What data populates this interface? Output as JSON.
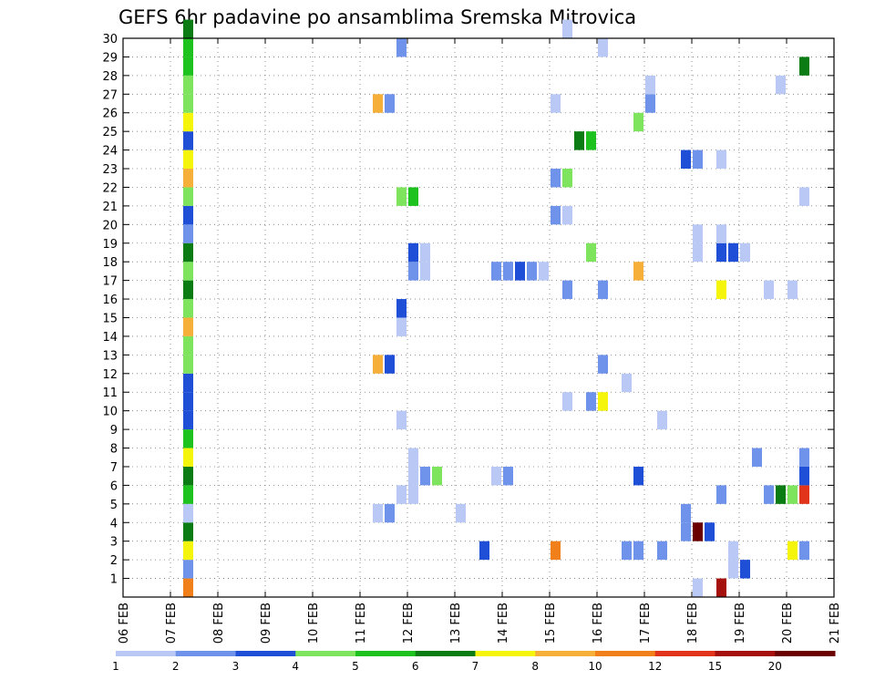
{
  "chart_data": {
    "type": "heatmap",
    "title": "GEFS 6hr padavine po ansamblima Sremska Mitrovica",
    "xlabel": "",
    "ylabel": "",
    "x_tick_labels": [
      "06 FEB",
      "07 FEB",
      "08 FEB",
      "09 FEB",
      "10 FEB",
      "11 FEB",
      "12 FEB",
      "13 FEB",
      "14 FEB",
      "15 FEB",
      "16 FEB",
      "17 FEB",
      "18 FEB",
      "19 FEB",
      "20 FEB",
      "21 FEB"
    ],
    "xlim": [
      0,
      60
    ],
    "ylim": [
      0,
      30
    ],
    "y_tick_labels": [
      "1",
      "2",
      "3",
      "4",
      "5",
      "6",
      "7",
      "8",
      "9",
      "10",
      "11",
      "12",
      "13",
      "14",
      "15",
      "16",
      "17",
      "18",
      "19",
      "20",
      "21",
      "22",
      "23",
      "24",
      "25",
      "26",
      "27",
      "28",
      "29",
      "30"
    ],
    "grid": true,
    "colorbar": {
      "placement": "bottom",
      "colors": [
        "#b9c8f5",
        "#6f92ea",
        "#1f4fd6",
        "#7ee45e",
        "#1ec21e",
        "#0b7b14",
        "#f5f50c",
        "#f6b03a",
        "#f2801a",
        "#e2341a",
        "#a5100d",
        "#6a0000"
      ],
      "labels": [
        "1",
        "2",
        "3",
        "4",
        "5",
        "6",
        "7",
        "8",
        "10",
        "12",
        "15",
        "20"
      ]
    },
    "cells": [
      [
        5,
        0,
        "#f2801a"
      ],
      [
        5,
        1,
        "#6f92ea"
      ],
      [
        5,
        2,
        "#f5f50c"
      ],
      [
        5,
        3,
        "#0b7b14"
      ],
      [
        5,
        4,
        "#b9c8f5"
      ],
      [
        5,
        5,
        "#1ec21e"
      ],
      [
        5,
        6,
        "#0b7b14"
      ],
      [
        5,
        7,
        "#f5f50c"
      ],
      [
        5,
        8,
        "#1ec21e"
      ],
      [
        5,
        9,
        "#1f4fd6"
      ],
      [
        5,
        10,
        "#1f4fd6"
      ],
      [
        5,
        11,
        "#1f4fd6"
      ],
      [
        5,
        12,
        "#7ee45e"
      ],
      [
        5,
        13,
        "#7ee45e"
      ],
      [
        5,
        14,
        "#f6b03a"
      ],
      [
        5,
        15,
        "#7ee45e"
      ],
      [
        5,
        16,
        "#0b7b14"
      ],
      [
        5,
        17,
        "#7ee45e"
      ],
      [
        5,
        18,
        "#0b7b14"
      ],
      [
        5,
        19,
        "#6f92ea"
      ],
      [
        5,
        20,
        "#1f4fd6"
      ],
      [
        5,
        21,
        "#7ee45e"
      ],
      [
        5,
        22,
        "#f6b03a"
      ],
      [
        5,
        23,
        "#f5f50c"
      ],
      [
        5,
        24,
        "#1f4fd6"
      ],
      [
        5,
        25,
        "#f5f50c"
      ],
      [
        5,
        26,
        "#7ee45e"
      ],
      [
        5,
        27,
        "#7ee45e"
      ],
      [
        5,
        28,
        "#1ec21e"
      ],
      [
        5,
        29,
        "#1ec21e"
      ],
      [
        5,
        30,
        "#0b7b14"
      ],
      [
        21,
        4,
        "#b9c8f5"
      ],
      [
        22,
        4,
        "#6f92ea"
      ],
      [
        21,
        12,
        "#f6b03a"
      ],
      [
        22,
        12,
        "#1f4fd6"
      ],
      [
        21,
        26,
        "#f6b03a"
      ],
      [
        22,
        26,
        "#6f92ea"
      ],
      [
        23,
        5,
        "#b9c8f5"
      ],
      [
        24,
        5,
        "#b9c8f5"
      ],
      [
        24,
        6,
        "#b9c8f5"
      ],
      [
        24,
        7,
        "#b9c8f5"
      ],
      [
        25,
        6,
        "#6f92ea"
      ],
      [
        26,
        6,
        "#7ee45e"
      ],
      [
        23,
        9,
        "#b9c8f5"
      ],
      [
        23,
        14,
        "#b9c8f5"
      ],
      [
        23,
        15,
        "#1f4fd6"
      ],
      [
        24,
        17,
        "#6f92ea"
      ],
      [
        24,
        18,
        "#1f4fd6"
      ],
      [
        25,
        17,
        "#b9c8f5"
      ],
      [
        25,
        18,
        "#b9c8f5"
      ],
      [
        23,
        21,
        "#7ee45e"
      ],
      [
        24,
        21,
        "#1ec21e"
      ],
      [
        23,
        29,
        "#6f92ea"
      ],
      [
        28,
        4,
        "#b9c8f5"
      ],
      [
        30,
        2,
        "#1f4fd6"
      ],
      [
        31,
        6,
        "#b9c8f5"
      ],
      [
        32,
        6,
        "#6f92ea"
      ],
      [
        31,
        17,
        "#6f92ea"
      ],
      [
        32,
        17,
        "#6f92ea"
      ],
      [
        33,
        17,
        "#1f4fd6"
      ],
      [
        34,
        17,
        "#6f92ea"
      ],
      [
        35,
        17,
        "#b9c8f5"
      ],
      [
        36,
        2,
        "#f2801a"
      ],
      [
        37,
        10,
        "#b9c8f5"
      ],
      [
        37,
        16,
        "#6f92ea"
      ],
      [
        36,
        20,
        "#6f92ea"
      ],
      [
        37,
        20,
        "#b9c8f5"
      ],
      [
        36,
        22,
        "#6f92ea"
      ],
      [
        37,
        22,
        "#7ee45e"
      ],
      [
        38,
        24,
        "#0b7b14"
      ],
      [
        39,
        24,
        "#1ec21e"
      ],
      [
        36,
        26,
        "#b9c8f5"
      ],
      [
        37,
        30,
        "#b9c8f5"
      ],
      [
        39,
        10,
        "#6f92ea"
      ],
      [
        40,
        10,
        "#f5f50c"
      ],
      [
        40,
        12,
        "#6f92ea"
      ],
      [
        40,
        16,
        "#6f92ea"
      ],
      [
        39,
        18,
        "#7ee45e"
      ],
      [
        40,
        29,
        "#b9c8f5"
      ],
      [
        42,
        2,
        "#6f92ea"
      ],
      [
        43,
        2,
        "#6f92ea"
      ],
      [
        42,
        11,
        "#b9c8f5"
      ],
      [
        43,
        6,
        "#1f4fd6"
      ],
      [
        43,
        17,
        "#f6b03a"
      ],
      [
        43,
        25,
        "#7ee45e"
      ],
      [
        44,
        26,
        "#6f92ea"
      ],
      [
        44,
        27,
        "#b9c8f5"
      ],
      [
        45,
        2,
        "#6f92ea"
      ],
      [
        45,
        9,
        "#b9c8f5"
      ],
      [
        47,
        3,
        "#6f92ea"
      ],
      [
        47,
        4,
        "#6f92ea"
      ],
      [
        47,
        23,
        "#1f4fd6"
      ],
      [
        48,
        23,
        "#6f92ea"
      ],
      [
        48,
        0,
        "#b9c8f5"
      ],
      [
        48,
        18,
        "#b9c8f5"
      ],
      [
        48,
        19,
        "#b9c8f5"
      ],
      [
        48,
        3,
        "#6a0000"
      ],
      [
        49,
        3,
        "#1f4fd6"
      ],
      [
        50,
        5,
        "#6f92ea"
      ],
      [
        50,
        16,
        "#f5f50c"
      ],
      [
        50,
        23,
        "#b9c8f5"
      ],
      [
        51,
        18,
        "#1f4fd6"
      ],
      [
        50,
        18,
        "#1f4fd6"
      ],
      [
        52,
        18,
        "#b9c8f5"
      ],
      [
        50,
        19,
        "#b9c8f5"
      ],
      [
        50,
        0,
        "#a5100d"
      ],
      [
        51,
        1,
        "#b9c8f5"
      ],
      [
        51,
        2,
        "#b9c8f5"
      ],
      [
        52,
        1,
        "#1f4fd6"
      ],
      [
        53,
        7,
        "#6f92ea"
      ],
      [
        54,
        5,
        "#6f92ea"
      ],
      [
        54,
        16,
        "#b9c8f5"
      ],
      [
        55,
        5,
        "#0b7b14"
      ],
      [
        56,
        5,
        "#7ee45e"
      ],
      [
        56,
        2,
        "#f5f50c"
      ],
      [
        56,
        16,
        "#b9c8f5"
      ],
      [
        55,
        27,
        "#b9c8f5"
      ],
      [
        57,
        2,
        "#6f92ea"
      ],
      [
        57,
        5,
        "#e2341a"
      ],
      [
        57,
        6,
        "#1f4fd6"
      ],
      [
        57,
        7,
        "#6f92ea"
      ],
      [
        57,
        21,
        "#b9c8f5"
      ],
      [
        57,
        28,
        "#0b7b14"
      ]
    ]
  }
}
